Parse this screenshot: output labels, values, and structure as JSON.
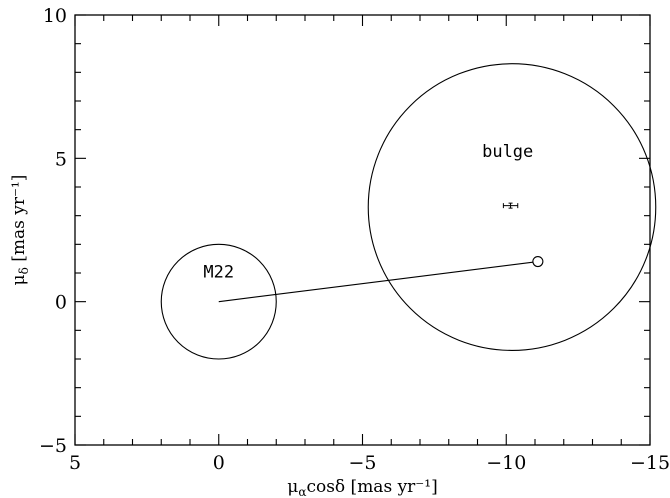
{
  "chart_data": {
    "type": "scatter",
    "title": "",
    "xlabel": {
      "mu": "μ",
      "sub": "α",
      "rest": "cosδ  [mas yr⁻¹]"
    },
    "ylabel": {
      "mu": "μ",
      "sub": "δ",
      "rest": "  [mas yr⁻¹]"
    },
    "xlim": [
      5,
      -15
    ],
    "ylim": [
      -5,
      10
    ],
    "x_ticks": [
      5,
      0,
      -5,
      -10,
      -15
    ],
    "x_tick_labels": [
      "5",
      "0",
      "−5",
      "−10",
      "−15"
    ],
    "y_ticks": [
      -5,
      0,
      5,
      10
    ],
    "y_tick_labels": [
      "−5",
      "0",
      "5",
      "10"
    ],
    "grid": false,
    "circles": [
      {
        "name": "M22",
        "cx": 0,
        "cy": 0,
        "r": 2
      },
      {
        "name": "bulge",
        "cx": -10.2,
        "cy": 3.3,
        "r": 5.0
      }
    ],
    "annotations": [
      {
        "text": "M22",
        "x": 0,
        "y": 0.85
      },
      {
        "text": "bulge",
        "x": -10.05,
        "y": 5.05
      }
    ],
    "line_segment": {
      "x1": 0,
      "y1": 0,
      "x2": -11.1,
      "y2": 1.4
    },
    "open_marker": {
      "x": -11.1,
      "y": 1.4
    },
    "errorbar_point": {
      "x": -10.15,
      "y": 3.35,
      "xerr": 0.25,
      "yerr": 0.08
    }
  }
}
